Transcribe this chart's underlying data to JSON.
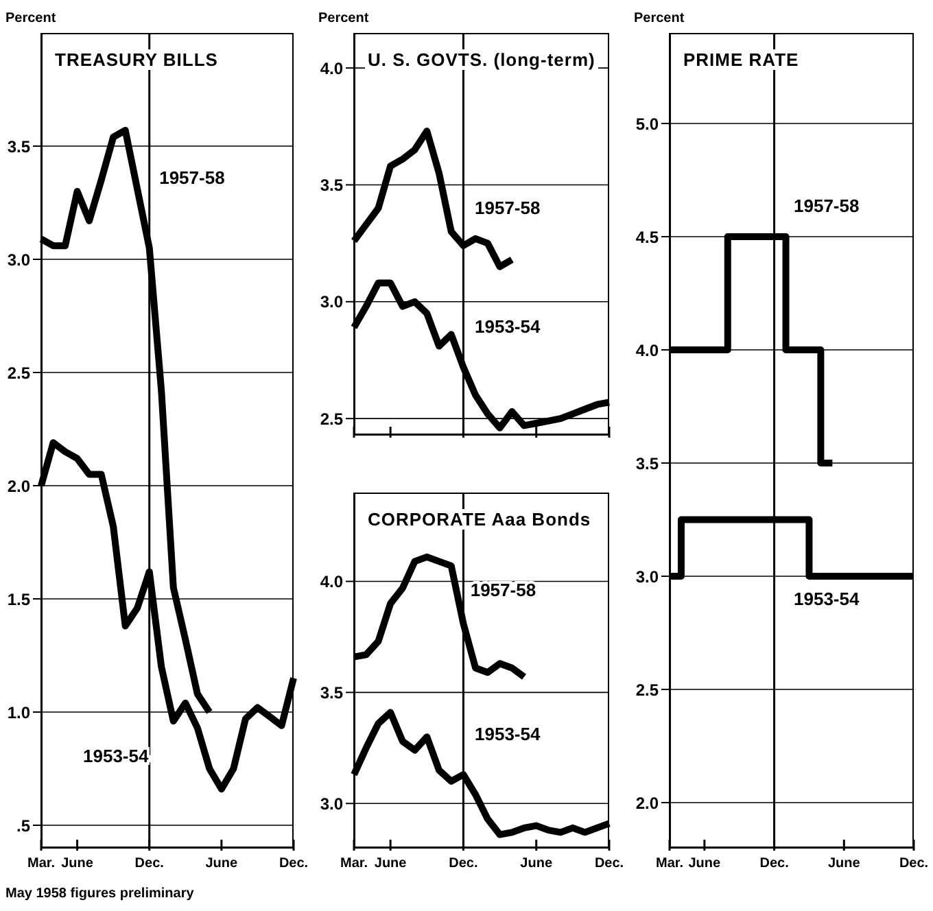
{
  "chart_data": [
    {
      "type": "line",
      "title": "TREASURY BILLS",
      "ylabel": "Percent",
      "annotations": [
        "May 1958 figures preliminary"
      ],
      "categories": [
        "Mar.",
        null,
        null,
        "June",
        null,
        null,
        null,
        null,
        null,
        "Dec.",
        null,
        null,
        null,
        null,
        null,
        "June",
        null,
        null,
        null,
        null,
        null,
        "Dec."
      ],
      "ylim": [
        0.4,
        4.0
      ],
      "yticks": [
        {
          "value": 0.5,
          "label": ".5"
        },
        {
          "value": 1,
          "label": "1.0"
        },
        {
          "value": 1.5,
          "label": "1.5"
        },
        {
          "value": 2,
          "label": "2.0"
        },
        {
          "value": 2.5,
          "label": "2.5"
        },
        {
          "value": 3,
          "label": "3.0"
        },
        {
          "value": 3.5,
          "label": "3.5"
        }
      ],
      "grid": "y",
      "ref_lines": [
        {
          "axis": "x",
          "value": "Dec."
        }
      ],
      "line_style": "solid",
      "series": [
        {
          "name": "1953-54",
          "color": "#000000",
          "values": [
            2.0,
            2.19,
            2.15,
            2.12,
            2.05,
            2.05,
            1.82,
            1.38,
            1.46,
            1.62,
            1.2,
            0.96,
            1.04,
            0.93,
            0.75,
            0.66,
            0.75,
            0.97,
            1.02,
            0.98,
            0.94,
            1.15
          ]
        },
        {
          "name": "1957-58",
          "color": "#000000",
          "values": [
            3.09,
            3.06,
            3.06,
            3.3,
            3.17,
            3.35,
            3.54,
            3.57,
            3.31,
            3.05,
            2.42,
            1.55,
            1.32,
            1.08,
            1.0,
            null,
            null,
            null,
            null,
            null,
            null,
            null
          ]
        }
      ]
    },
    {
      "type": "line",
      "title": "U. S. GOVTS. (long-term)",
      "ylabel": "Percent",
      "categories": [
        "Mar.",
        null,
        null,
        "June",
        null,
        null,
        null,
        null,
        null,
        "Dec.",
        null,
        null,
        null,
        null,
        null,
        "June",
        null,
        null,
        null,
        null,
        null,
        "Dec."
      ],
      "tick_labels": "y",
      "ylim": [
        2.43,
        4.15
      ],
      "yticks": [
        {
          "value": 2.5,
          "label": "2.5"
        },
        {
          "value": 3,
          "label": "3.0"
        },
        {
          "value": 3.5,
          "label": "3.5"
        },
        {
          "value": 4,
          "label": "4.0"
        }
      ],
      "grid": "y",
      "ref_lines": [
        {
          "axis": "x",
          "value": "Dec."
        }
      ],
      "line_style": "solid",
      "series": [
        {
          "name": "1953-54",
          "color": "#000000",
          "values": [
            2.89,
            2.98,
            3.08,
            3.08,
            2.98,
            3.0,
            2.95,
            2.81,
            2.86,
            2.72,
            2.6,
            2.52,
            2.46,
            2.53,
            2.47,
            2.48,
            2.49,
            2.5,
            2.52,
            2.54,
            2.56,
            2.57
          ]
        },
        {
          "name": "1957-58",
          "color": "#000000",
          "values": [
            3.26,
            3.33,
            3.4,
            3.58,
            3.61,
            3.65,
            3.73,
            3.55,
            3.3,
            3.24,
            3.27,
            3.25,
            3.15,
            3.18,
            null,
            null,
            null,
            null,
            null,
            null,
            null,
            null
          ]
        }
      ]
    },
    {
      "type": "line",
      "title": "CORPORATE Aaa Bonds",
      "categories": [
        "Mar.",
        null,
        null,
        "June",
        null,
        null,
        null,
        null,
        null,
        "Dec.",
        null,
        null,
        null,
        null,
        null,
        "June",
        null,
        null,
        null,
        null,
        null,
        "Dec."
      ],
      "ylim": [
        2.8,
        4.4
      ],
      "yticks": [
        {
          "value": 3,
          "label": "3.0"
        },
        {
          "value": 3.5,
          "label": "3.5"
        },
        {
          "value": 4,
          "label": "4.0"
        }
      ],
      "grid": "y",
      "ref_lines": [
        {
          "axis": "x",
          "value": "Dec."
        }
      ],
      "line_style": "solid",
      "series": [
        {
          "name": "1953-54",
          "color": "#000000",
          "values": [
            3.13,
            3.25,
            3.36,
            3.41,
            3.28,
            3.24,
            3.3,
            3.15,
            3.1,
            3.13,
            3.04,
            2.93,
            2.86,
            2.87,
            2.89,
            2.9,
            2.88,
            2.87,
            2.89,
            2.87,
            2.89,
            2.91
          ]
        },
        {
          "name": "1957-58",
          "color": "#000000",
          "values": [
            3.66,
            3.67,
            3.73,
            3.9,
            3.97,
            4.09,
            4.11,
            4.09,
            4.07,
            3.81,
            3.61,
            3.59,
            3.63,
            3.61,
            3.57,
            null,
            null,
            null,
            null,
            null,
            null,
            null
          ]
        }
      ]
    },
    {
      "type": "step",
      "title": "PRIME RATE",
      "ylabel": "Percent",
      "categories": [
        "Mar.",
        null,
        null,
        "June",
        null,
        null,
        null,
        null,
        null,
        "Dec.",
        null,
        null,
        null,
        null,
        null,
        "June",
        null,
        null,
        null,
        null,
        null,
        "Dec."
      ],
      "ylim": [
        1.8,
        5.4
      ],
      "yticks": [
        {
          "value": 2,
          "label": "2.0"
        },
        {
          "value": 2.5,
          "label": "2.5"
        },
        {
          "value": 3,
          "label": "3.0"
        },
        {
          "value": 3.5,
          "label": "3.5"
        },
        {
          "value": 4,
          "label": "4.0"
        },
        {
          "value": 4.5,
          "label": "4.5"
        },
        {
          "value": 5,
          "label": "5.0"
        }
      ],
      "grid": "y",
      "ref_lines": [
        {
          "axis": "x",
          "value": "Dec."
        }
      ],
      "line_style": "solid",
      "series": [
        {
          "name": "1953-54",
          "color": "#000000",
          "values": [
            3.0,
            3.25,
            3.25,
            3.25,
            3.25,
            3.25,
            3.25,
            3.25,
            3.25,
            3.25,
            3.25,
            3.25,
            3.0,
            3.0,
            3.0,
            3.0,
            3.0,
            3.0,
            3.0,
            3.0,
            3.0,
            3.0
          ]
        },
        {
          "name": "1957-58",
          "color": "#000000",
          "values": [
            4.0,
            4.0,
            4.0,
            4.0,
            4.0,
            4.5,
            4.5,
            4.5,
            4.5,
            4.5,
            4.0,
            4.0,
            4.0,
            3.5,
            3.5,
            null,
            null,
            null,
            null,
            null,
            null,
            null
          ]
        }
      ]
    }
  ]
}
